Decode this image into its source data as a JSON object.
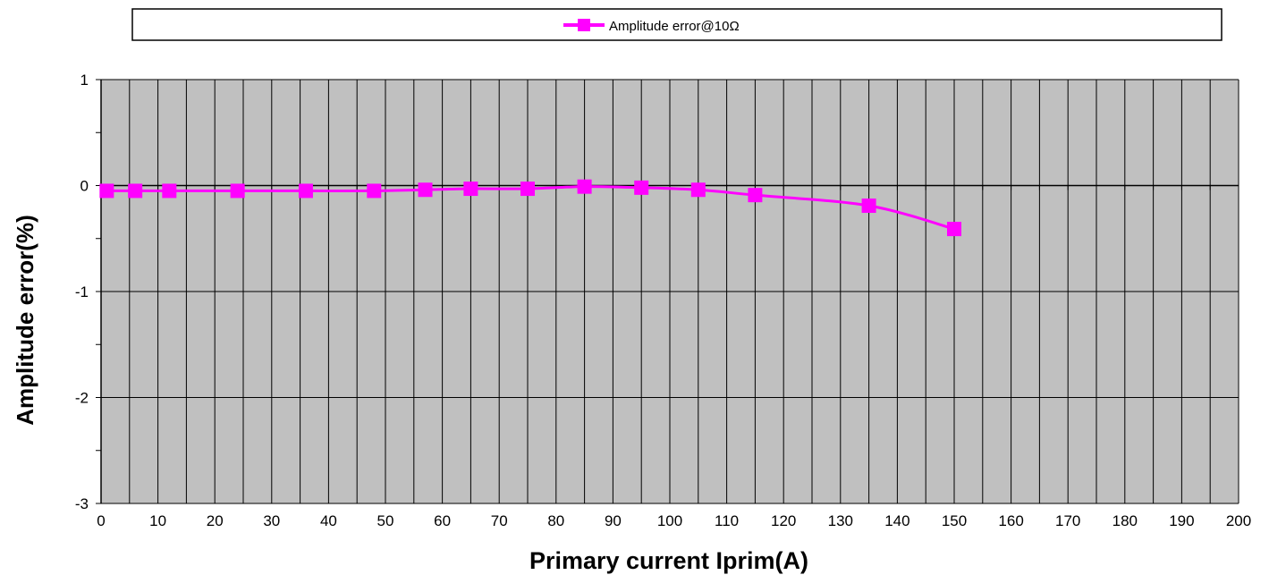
{
  "chart_data": {
    "type": "line",
    "xlabel": "Primary current Iprim(A)",
    "ylabel": "Amplitude error(%)",
    "xlim": [
      0,
      200
    ],
    "ylim": [
      -3,
      1
    ],
    "x_major_step": 10,
    "x_minor_step": 5,
    "y_major_step": 1,
    "y_minor_step": 0.5,
    "grid": true,
    "legend_position": "top",
    "plot_background": "#c0c0c0",
    "x_ticks": [
      "0",
      "10",
      "20",
      "30",
      "40",
      "50",
      "60",
      "70",
      "80",
      "90",
      "100",
      "110",
      "120",
      "130",
      "140",
      "150",
      "160",
      "170",
      "180",
      "190",
      "200"
    ],
    "y_ticks": [
      "1",
      "0",
      "-1",
      "-2",
      "-3"
    ],
    "series": [
      {
        "name": "Amplitude error@10Ω",
        "color": "#ff00ff",
        "marker": "square",
        "x": [
          1,
          6,
          12,
          24,
          36,
          48,
          57,
          65,
          75,
          85,
          95,
          105,
          115,
          135,
          150
        ],
        "y": [
          -0.05,
          -0.05,
          -0.05,
          -0.05,
          -0.05,
          -0.05,
          -0.04,
          -0.03,
          -0.03,
          -0.01,
          -0.02,
          -0.04,
          -0.09,
          -0.19,
          -0.41
        ]
      }
    ]
  }
}
